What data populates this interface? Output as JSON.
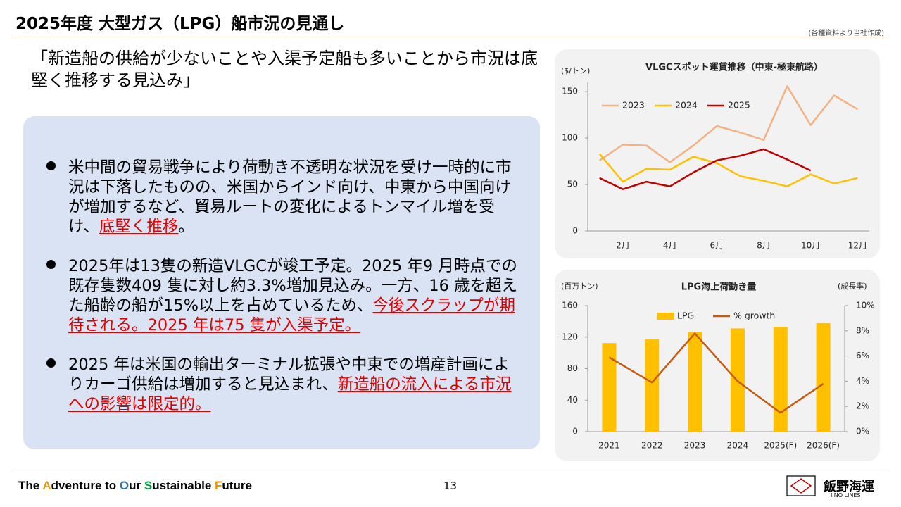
{
  "title": "2025年度 大型ガス（LPG）船市況の見通し",
  "source": "(各種資料より当社作成)",
  "quote": "「新造船の供給が少ないことや入渠予定船も多いことから市況は底堅く推移する見込み」",
  "bullets": [
    {
      "segments": [
        {
          "text": "米中間の貿易戦争により荷動き不透明な状況を受け一時的に市況は下落したものの、米国からインド向け、中東から中国向けが増加するなど、貿易ルートの変化によるトンマイル増を受け、",
          "highlight": false
        },
        {
          "text": "底堅く推移",
          "highlight": true
        },
        {
          "text": "。",
          "highlight": false
        }
      ]
    },
    {
      "segments": [
        {
          "text": "2025年は13隻の新造VLGCが竣工予定。2025 年9 月時点での既存隻数409 隻に対し約3.3%増加見込み。一方、16 歳を超えた船齢の船が15%以上を占めているため、",
          "highlight": false
        },
        {
          "text": "今後スクラップが期待される。2025 年は75 隻が入渠予定。",
          "highlight": true
        }
      ]
    },
    {
      "segments": [
        {
          "text": "2025 年は米国の輸出ターミナル拡張や中東での増産計画によりカーゴ供給は増加すると見込まれ、",
          "highlight": false
        },
        {
          "text": "新造船の流入による市況への影響は限定的。",
          "highlight": true
        }
      ]
    }
  ],
  "footer": {
    "segments": [
      {
        "text": "The ",
        "color": "#000000"
      },
      {
        "text": "A",
        "color": "#e69500"
      },
      {
        "text": "dventure to ",
        "color": "#000000"
      },
      {
        "text": "O",
        "color": "#2e75b6"
      },
      {
        "text": "ur ",
        "color": "#000000"
      },
      {
        "text": "S",
        "color": "#00a040"
      },
      {
        "text": "ustainable ",
        "color": "#000000"
      },
      {
        "text": "F",
        "color": "#e69500"
      },
      {
        "text": "uture",
        "color": "#000000"
      }
    ]
  },
  "page_number": "13",
  "logo": {
    "name": "飯野海運",
    "sub": "IINO LINES"
  },
  "chart_data": [
    {
      "type": "line",
      "title": "VLGCスポット運賃推移（中東-極東航路）",
      "y_label": "($/トン)",
      "categories": [
        null,
        "2月",
        null,
        "4月",
        null,
        "6月",
        null,
        "8月",
        null,
        "10月",
        null,
        "12月"
      ],
      "series": [
        {
          "name": "2023",
          "color": "#f4b183",
          "values": [
            76,
            93,
            92,
            74,
            92,
            113,
            106,
            98,
            156,
            114,
            146,
            131
          ]
        },
        {
          "name": "2024",
          "color": "#ffc000",
          "values": [
            83,
            53,
            67,
            66,
            80,
            73,
            59,
            54,
            48,
            61,
            51,
            57
          ]
        },
        {
          "name": "2025",
          "color": "#c00000",
          "values": [
            57,
            45,
            53,
            48,
            63,
            76,
            81,
            88,
            77,
            65,
            null,
            null
          ]
        }
      ],
      "ylim": [
        0,
        160
      ],
      "yticks": [
        0,
        50,
        100,
        150
      ],
      "grid": false,
      "legend": "top-left"
    },
    {
      "type": "bar",
      "title": "LPG海上荷動き量",
      "y_label": "(百万トン)",
      "y2_label": "(成長率)",
      "categories": [
        "2021",
        "2022",
        "2023",
        "2024",
        "2025(F)",
        "2026(F)"
      ],
      "series": [
        {
          "name": "LPG",
          "color": "#ffc000",
          "values": [
            112.5,
            117,
            126,
            131,
            133,
            138
          ]
        },
        {
          "name": "% growth",
          "color": "#c55a11",
          "type": "line",
          "axis": "y2",
          "values": [
            5.9,
            3.9,
            7.8,
            4.0,
            1.5,
            3.8
          ]
        }
      ],
      "ylim": [
        0,
        160
      ],
      "yticks": [
        0,
        40,
        80,
        120,
        160
      ],
      "y2lim": [
        0,
        10
      ],
      "y2ticks": [
        {
          "value": 0,
          "label": "0%"
        },
        {
          "value": 2,
          "label": "2%"
        },
        {
          "value": 4,
          "label": "4%"
        },
        {
          "value": 6,
          "label": "6%"
        },
        {
          "value": 8,
          "label": "8%"
        },
        {
          "value": 10,
          "label": "10%"
        }
      ],
      "grid": false,
      "legend": "top"
    }
  ]
}
